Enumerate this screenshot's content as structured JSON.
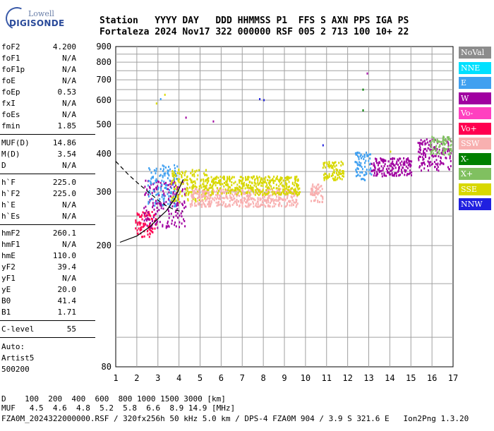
{
  "logo": {
    "line1": "Lowell",
    "line2": "DIGISONDE"
  },
  "header": {
    "labels": "Station   YYYY DAY   DDD HHMMSS P1  FFS S AXN PPS IGA PS",
    "values": "Fortaleza 2024 Nov17 322 000000 RSF 005 2 713 100 10+ 22"
  },
  "params": {
    "group1": [
      {
        "name": "foF2",
        "value": "4.200"
      },
      {
        "name": "foF1",
        "value": "N/A"
      },
      {
        "name": "foF1p",
        "value": "N/A"
      },
      {
        "name": "foE",
        "value": "N/A"
      },
      {
        "name": "foEp",
        "value": "0.53"
      },
      {
        "name": "fxI",
        "value": "N/A"
      },
      {
        "name": "foEs",
        "value": "N/A"
      },
      {
        "name": "fmin",
        "value": "1.85"
      }
    ],
    "group2": [
      {
        "name": "MUF(D)",
        "value": "14.86"
      },
      {
        "name": "M(D)",
        "value": "3.54"
      },
      {
        "name": "D",
        "value": "N/A"
      }
    ],
    "group3": [
      {
        "name": "h`F",
        "value": "225.0"
      },
      {
        "name": "h`F2",
        "value": "225.0"
      },
      {
        "name": "h`E",
        "value": "N/A"
      },
      {
        "name": "h`Es",
        "value": "N/A"
      }
    ],
    "group4": [
      {
        "name": "hmF2",
        "value": "260.1"
      },
      {
        "name": "hmF1",
        "value": "N/A"
      },
      {
        "name": "hmE",
        "value": "110.0"
      },
      {
        "name": "yF2",
        "value": "39.4"
      },
      {
        "name": "yF1",
        "value": "N/A"
      },
      {
        "name": "yE",
        "value": "20.0"
      },
      {
        "name": "B0",
        "value": "41.4"
      },
      {
        "name": "B1",
        "value": "1.71"
      }
    ],
    "clevel": {
      "name": "C-level",
      "value": "55"
    },
    "auto": [
      "Auto:",
      "Artist5",
      "500200"
    ]
  },
  "legend": [
    {
      "label": "NoVal",
      "color": "#8c8c8c"
    },
    {
      "label": "NNE",
      "color": "#00e0ff"
    },
    {
      "label": "E",
      "color": "#40a0f0"
    },
    {
      "label": "W",
      "color": "#a000a0"
    },
    {
      "label": "Vo-",
      "color": "#ff40c0"
    },
    {
      "label": "Vo+",
      "color": "#ff0050"
    },
    {
      "label": "SSW",
      "color": "#f8b0b0"
    },
    {
      "label": "X-",
      "color": "#008000"
    },
    {
      "label": "X+",
      "color": "#80c060"
    },
    {
      "label": "SSE",
      "color": "#d8d800"
    },
    {
      "label": "NNW",
      "color": "#2020e0"
    }
  ],
  "footer": {
    "line1": "D    100  200  400  600  800 1000 1500 3000 [km]",
    "line2": "MUF   4.5  4.6  4.8  5.2  5.8  6.6  8.9 14.9 [MHz]",
    "line3": "FZA0M_2024322000000.RSF / 320fx256h 50 kHz 5.0 km / DPS-4 FZA0M 904 / 3.9 S 321.6 E   Ion2Png 1.3.20"
  },
  "chart_data": {
    "type": "scatter",
    "xlim": [
      1,
      17
    ],
    "ylim": [
      80,
      900
    ],
    "y_scale": "log",
    "x_ticks": [
      1,
      2,
      3,
      4,
      5,
      6,
      7,
      8,
      9,
      10,
      11,
      12,
      13,
      14,
      15,
      16,
      17
    ],
    "y_ticks": [
      80,
      200,
      300,
      400,
      500,
      600,
      700,
      800,
      900
    ],
    "grid": true,
    "legend_position": "right",
    "clusters": [
      {
        "color": "#ff0050",
        "x": [
          1.9,
          2.9
        ],
        "y": [
          215,
          260
        ]
      },
      {
        "color": "#a000a0",
        "x": [
          2.3,
          4.3
        ],
        "y": [
          230,
          330
        ]
      },
      {
        "color": "#40a0f0",
        "x": [
          2.5,
          3.9
        ],
        "y": [
          270,
          370
        ]
      },
      {
        "color": "#d8d800",
        "x": [
          3.6,
          5.3
        ],
        "y": [
          280,
          360
        ]
      },
      {
        "color": "#f8b0b0",
        "x": [
          4.5,
          9.6
        ],
        "y": [
          270,
          310
        ]
      },
      {
        "color": "#d8d800",
        "x": [
          5.2,
          9.7
        ],
        "y": [
          295,
          340
        ]
      },
      {
        "color": "#f8b0b0",
        "x": [
          10.2,
          10.8
        ],
        "y": [
          280,
          320
        ]
      },
      {
        "color": "#d8d800",
        "x": [
          10.8,
          11.8
        ],
        "y": [
          330,
          380
        ]
      },
      {
        "color": "#40a0f0",
        "x": [
          12.3,
          13.1
        ],
        "y": [
          330,
          410
        ]
      },
      {
        "color": "#a000a0",
        "x": [
          13.1,
          15.0
        ],
        "y": [
          340,
          390
        ]
      },
      {
        "color": "#a000a0",
        "x": [
          15.3,
          16.9
        ],
        "y": [
          355,
          450
        ]
      },
      {
        "color": "#80c060",
        "x": [
          15.9,
          16.9
        ],
        "y": [
          400,
          460
        ]
      }
    ],
    "outliers": [
      {
        "x": 2.9,
        "y": 590,
        "color": "#d8d800"
      },
      {
        "x": 3.1,
        "y": 610,
        "color": "#40a0f0"
      },
      {
        "x": 3.3,
        "y": 630,
        "color": "#d8d800"
      },
      {
        "x": 4.3,
        "y": 530,
        "color": "#a000a0"
      },
      {
        "x": 5.6,
        "y": 515,
        "color": "#a000a0"
      },
      {
        "x": 7.8,
        "y": 610,
        "color": "#2020e0"
      },
      {
        "x": 8.0,
        "y": 605,
        "color": "#2020e0"
      },
      {
        "x": 12.7,
        "y": 655,
        "color": "#008000"
      },
      {
        "x": 12.7,
        "y": 560,
        "color": "#008000"
      },
      {
        "x": 12.9,
        "y": 740,
        "color": "#a000a0"
      },
      {
        "x": 14.0,
        "y": 410,
        "color": "#d8d800"
      },
      {
        "x": 10.8,
        "y": 430,
        "color": "#2020e0"
      }
    ],
    "profile_curve": {
      "x": [
        1.2,
        2.0,
        2.6,
        3.0,
        3.4,
        3.8,
        4.2
      ],
      "y": [
        205,
        215,
        230,
        245,
        260,
        285,
        330
      ]
    },
    "dashed_curve": {
      "x": [
        1.0,
        1.6,
        2.1,
        2.6,
        3.0,
        3.4,
        3.8,
        4.2
      ],
      "y": [
        378,
        342,
        318,
        298,
        282,
        270,
        262,
        258
      ]
    }
  }
}
